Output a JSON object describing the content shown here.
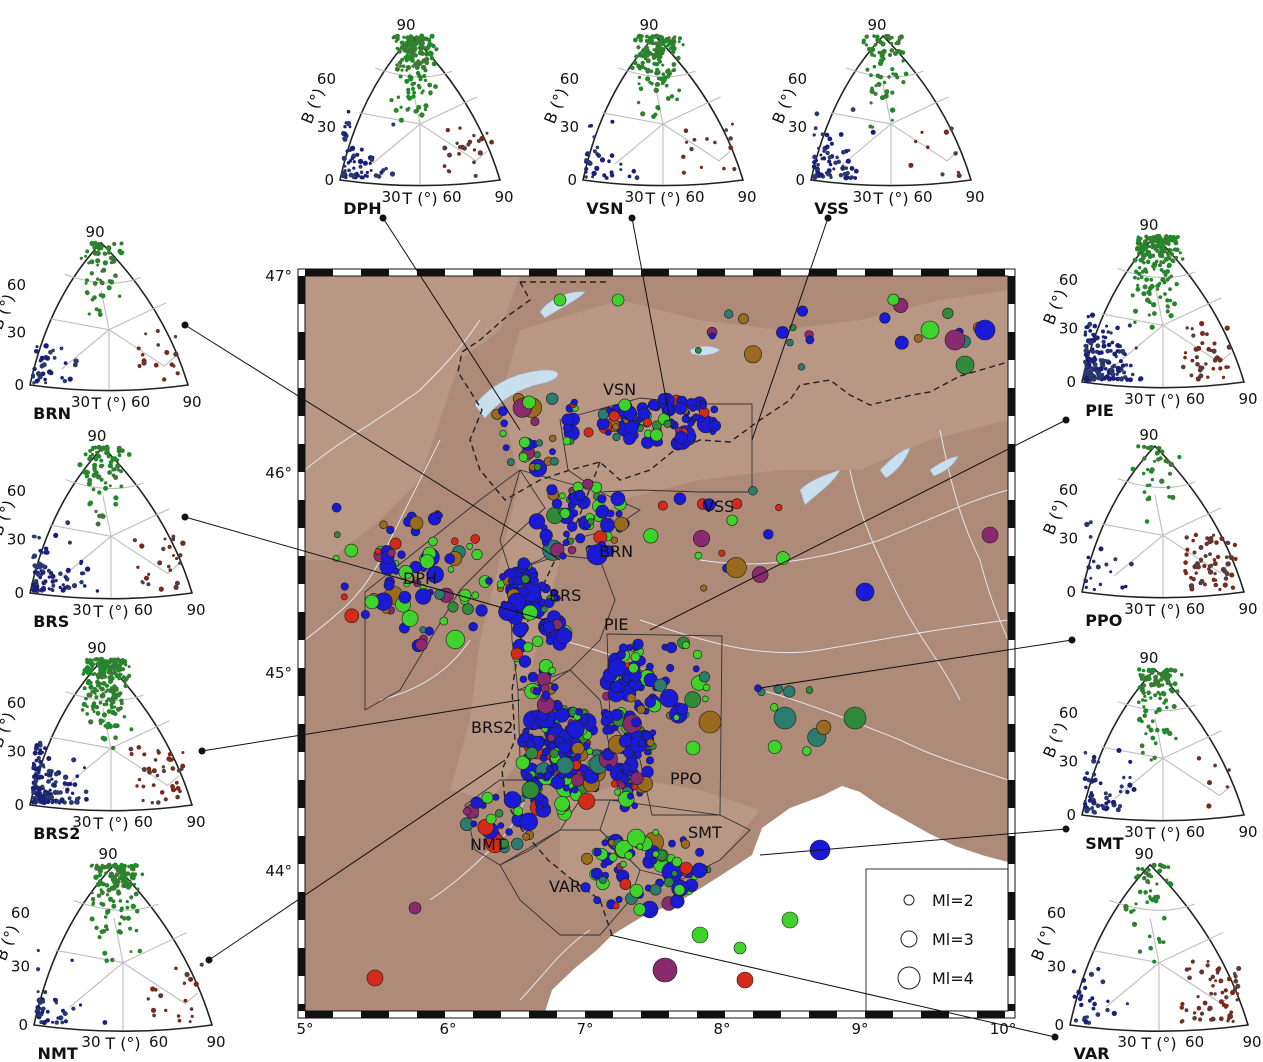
{
  "colors": {
    "map_bg": "#ae8a78",
    "map_relief": "#c2a390",
    "sea": "#ffffff",
    "lake": "#c9dfee",
    "river": "#e8eef4",
    "border": "#222222",
    "zone_outline": "#333333",
    "triangle_grid": "#bdbdbd",
    "green": "#3fd22a",
    "dark_green": "#2f8a3a",
    "blue": "#1a1ad6",
    "teal": "#2c7c6e",
    "red": "#d42a1a",
    "purple": "#8a2a6e",
    "brown": "#9a6a1e"
  },
  "map": {
    "lon_labels": [
      "5°",
      "6°",
      "7°",
      "8°",
      "9°",
      "10°"
    ],
    "lat_labels": [
      "47°",
      "46°",
      "45°",
      "44°"
    ],
    "regions": [
      {
        "id": "vsn",
        "text": "VSN"
      },
      {
        "id": "vss",
        "text": "VSS"
      },
      {
        "id": "brn",
        "text": "BRN"
      },
      {
        "id": "dph",
        "text": "DPH"
      },
      {
        "id": "brs",
        "text": "BRS"
      },
      {
        "id": "pie",
        "text": "PIE"
      },
      {
        "id": "brs2",
        "text": "BRS2"
      },
      {
        "id": "ppo",
        "text": "PPO"
      },
      {
        "id": "smt",
        "text": "SMT"
      },
      {
        "id": "nmt",
        "text": "NMT"
      },
      {
        "id": "var",
        "text": "VAR"
      }
    ],
    "legend": [
      {
        "text": "Ml=2",
        "magnitude": 2
      },
      {
        "text": "Ml=3",
        "magnitude": 3
      },
      {
        "text": "Ml=4",
        "magnitude": 4
      }
    ]
  },
  "triangles": [
    {
      "id": "dph",
      "region": "DPH",
      "density": 0.55,
      "mix": [
        0.62,
        0.25,
        0.13
      ]
    },
    {
      "id": "vsn",
      "region": "VSN",
      "density": 0.45,
      "mix": [
        0.72,
        0.22,
        0.06
      ]
    },
    {
      "id": "vss",
      "region": "VSS",
      "density": 0.3,
      "mix": [
        0.45,
        0.5,
        0.05
      ]
    },
    {
      "id": "brn",
      "region": "BRN",
      "density": 0.18,
      "mix": [
        0.55,
        0.35,
        0.1
      ]
    },
    {
      "id": "pie",
      "region": "PIE",
      "density": 1.0,
      "mix": [
        0.45,
        0.45,
        0.1
      ]
    },
    {
      "id": "brs",
      "region": "BRS",
      "density": 0.42,
      "mix": [
        0.45,
        0.45,
        0.1
      ]
    },
    {
      "id": "ppo",
      "region": "PPO",
      "density": 0.22,
      "mix": [
        0.35,
        0.15,
        0.5
      ]
    },
    {
      "id": "brs2",
      "region": "BRS2",
      "density": 1.0,
      "mix": [
        0.5,
        0.38,
        0.12
      ]
    },
    {
      "id": "smt",
      "region": "SMT",
      "density": 0.35,
      "mix": [
        0.65,
        0.3,
        0.05
      ]
    },
    {
      "id": "nmt",
      "region": "NMT",
      "density": 0.45,
      "mix": [
        0.7,
        0.2,
        0.1
      ]
    },
    {
      "id": "var",
      "region": "VAR",
      "density": 0.25,
      "mix": [
        0.3,
        0.2,
        0.5
      ]
    }
  ],
  "triangle_text": {
    "b_axis": "B (°)",
    "t_axis": "T (°)",
    "tick_0": "0",
    "tick_30": "30",
    "tick_60": "60",
    "tick_90": "90"
  }
}
